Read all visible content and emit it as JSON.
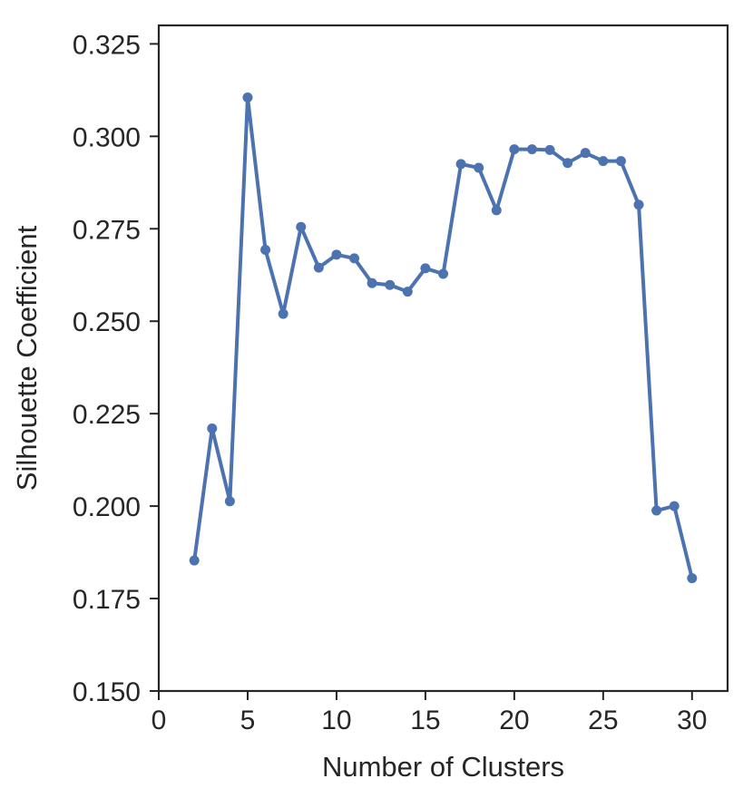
{
  "chart_data": {
    "type": "line",
    "title": "",
    "xlabel": "Number of Clusters",
    "ylabel": "Silhouette Coefficient",
    "xlim": [
      0,
      32
    ],
    "ylim": [
      0.15,
      0.33
    ],
    "xticks": [
      0,
      5,
      10,
      15,
      20,
      25,
      30
    ],
    "yticks": [
      0.15,
      0.175,
      0.2,
      0.225,
      0.25,
      0.275,
      0.3,
      0.325
    ],
    "xtick_labels": [
      "0",
      "5",
      "10",
      "15",
      "20",
      "25",
      "30"
    ],
    "ytick_labels": [
      "0.150",
      "0.175",
      "0.200",
      "0.225",
      "0.250",
      "0.275",
      "0.300",
      "0.325"
    ],
    "grid": false,
    "series": [
      {
        "color": "#4c72b0",
        "marker": "circle",
        "x": [
          2,
          3,
          4,
          5,
          6,
          7,
          8,
          9,
          10,
          11,
          12,
          13,
          14,
          15,
          16,
          17,
          18,
          19,
          20,
          21,
          22,
          23,
          24,
          25,
          26,
          27,
          28,
          29,
          30
        ],
        "y": [
          0.1853,
          0.221,
          0.2013,
          0.3105,
          0.2693,
          0.252,
          0.2755,
          0.2645,
          0.268,
          0.267,
          0.2603,
          0.2598,
          0.258,
          0.2643,
          0.2628,
          0.2925,
          0.2915,
          0.28,
          0.2965,
          0.2965,
          0.2963,
          0.2928,
          0.2955,
          0.2933,
          0.2933,
          0.2815,
          0.1988,
          0.2,
          0.1805
        ]
      }
    ]
  }
}
